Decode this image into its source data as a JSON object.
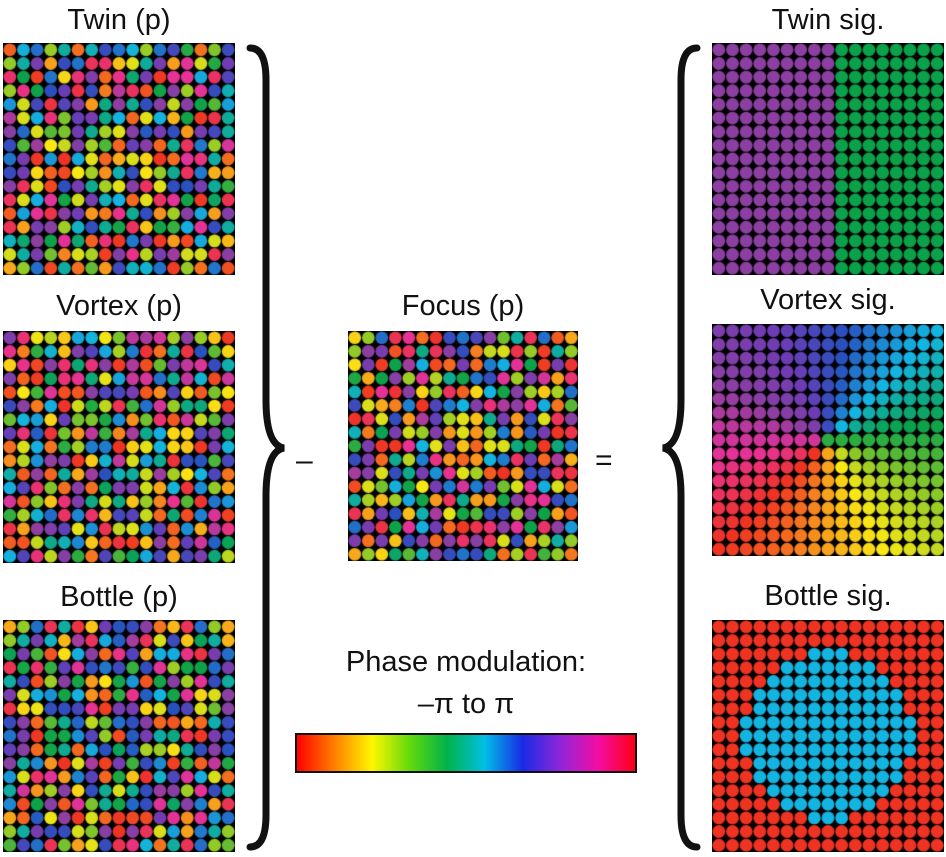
{
  "labels": {
    "twin_p": "Twin (p)",
    "vortex_p": "Vortex (p)",
    "bottle_p": "Bottle (p)",
    "focus_p": "Focus (p)",
    "twin_sig": "Twin sig.",
    "vortex_sig": "Vortex sig.",
    "bottle_sig": "Bottle sig."
  },
  "operators": {
    "minus": "–",
    "equals": "="
  },
  "colorbar": {
    "title": "Phase modulation:",
    "range": "–π to π"
  },
  "grid_cells": 17,
  "colors": {
    "purple": "#8b3fa0",
    "green": "#0aa14a",
    "cyan": "#14b4e0",
    "red": "#ee3323"
  }
}
